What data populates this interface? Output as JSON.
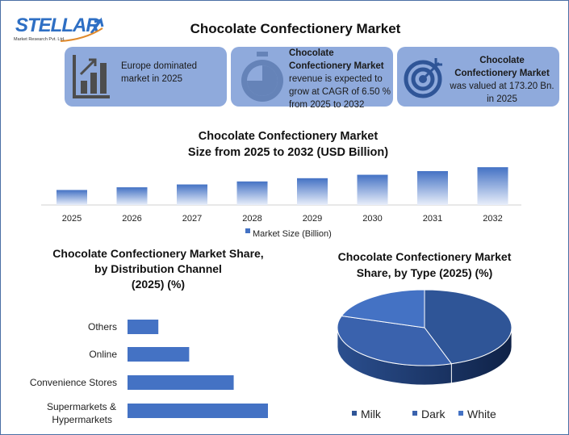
{
  "logo": {
    "name": "STELLAR",
    "tagline": "Market Research Pvt. Ltd."
  },
  "header": {
    "title": "Chocolate Confectionery Market"
  },
  "cards": [
    {
      "icon": "bar-chart-growth-icon",
      "text": "Europe dominated market in 2025"
    },
    {
      "icon": "stopwatch-icon",
      "bold": "Chocolate Confectionery Market",
      "text": "revenue is expected to grow at CAGR of 6.50 % from 2025 to 2032"
    },
    {
      "icon": "target-icon",
      "bold": "Chocolate Confectionery Market",
      "text": "was valued at 173.20 Bn. in 2025"
    }
  ],
  "colors": {
    "accent": "#4472c4",
    "card": "#8faadc",
    "dark": "#2f5597"
  },
  "chart_data": [
    {
      "type": "bar",
      "title": "Chocolate Confectionery Market Size from 2025 to 2032 (USD Billion)",
      "title_lines": [
        "Chocolate Confectionery Market",
        "Size from 2025 to 2032 (USD Billion)"
      ],
      "categories": [
        "2025",
        "2026",
        "2027",
        "2028",
        "2029",
        "2030",
        "2031",
        "2032"
      ],
      "series": [
        {
          "name": "Market Size (Billion)",
          "values": [
            173.2,
            184.5,
            196.5,
            209.2,
            222.8,
            237.3,
            252.7,
            269.2
          ]
        }
      ],
      "ylim": [
        110,
        280
      ],
      "legend": "bottom",
      "grid": false
    },
    {
      "type": "bar",
      "orientation": "horizontal",
      "title_lines": [
        "Chocolate Confectionery Market Share,",
        "by Distribution Channel",
        "(2025) (%)"
      ],
      "categories": [
        "Others",
        "Online",
        "Convenience Stores",
        "Supermarkets & Hypermarkets"
      ],
      "values": [
        9,
        18,
        31,
        41
      ],
      "xlim": [
        0,
        45
      ],
      "grid": false
    },
    {
      "type": "pie",
      "style": "3d",
      "title_lines": [
        "Chocolate Confectionery Market",
        "Share, by Type (2025) (%)"
      ],
      "categories": [
        "Milk",
        "Dark",
        "White"
      ],
      "values": [
        45,
        35,
        20
      ],
      "colors": [
        "#2f5597",
        "#3a62ad",
        "#4472c4"
      ],
      "legend": "bottom"
    }
  ]
}
